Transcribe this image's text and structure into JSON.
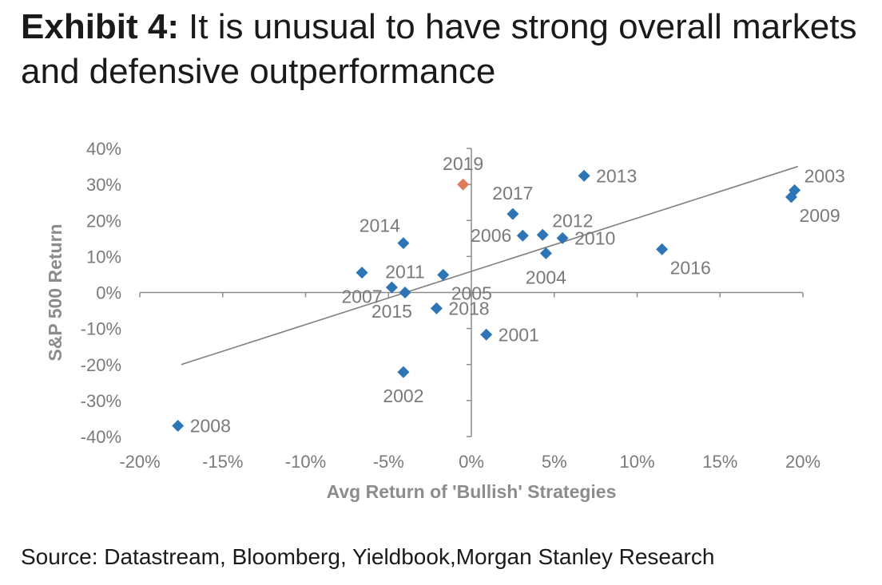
{
  "header": {
    "lead": "Exhibit 4:",
    "title": "It is unusual to have strong overall markets and defensive outperformance"
  },
  "footer": {
    "source": "Source: Datastream, Bloomberg, Yieldbook,Morgan Stanley Research"
  },
  "chart_data": {
    "type": "scatter",
    "title": "",
    "xlabel": "Avg Return of 'Bullish' Strategies",
    "ylabel": "S&P 500 Return",
    "xlim": [
      -0.2,
      0.2
    ],
    "ylim": [
      -0.4,
      0.4
    ],
    "x_ticks": [
      {
        "value": -0.2,
        "label": "-20%"
      },
      {
        "value": -0.15,
        "label": "-15%"
      },
      {
        "value": -0.1,
        "label": "-10%"
      },
      {
        "value": -0.05,
        "label": "-5%"
      },
      {
        "value": 0.0,
        "label": "0%"
      },
      {
        "value": 0.05,
        "label": "5%"
      },
      {
        "value": 0.1,
        "label": "10%"
      },
      {
        "value": 0.15,
        "label": "15%"
      },
      {
        "value": 0.2,
        "label": "20%"
      }
    ],
    "y_ticks": [
      {
        "value": 0.4,
        "label": "40%"
      },
      {
        "value": 0.3,
        "label": "30%"
      },
      {
        "value": 0.2,
        "label": "20%"
      },
      {
        "value": 0.1,
        "label": "10%"
      },
      {
        "value": 0.0,
        "label": "0%"
      },
      {
        "value": -0.1,
        "label": "-10%"
      },
      {
        "value": -0.2,
        "label": "-20%"
      },
      {
        "value": -0.3,
        "label": "-30%"
      },
      {
        "value": -0.4,
        "label": "-40%"
      }
    ],
    "colors": {
      "points": "#2e75b6",
      "highlight": "#e07b5c",
      "trendline": "#7f7f7f",
      "axis": "#8c8c8c"
    },
    "points": [
      {
        "year": "2001",
        "x": 0.009,
        "y": -0.117,
        "label_pos": "right"
      },
      {
        "year": "2002",
        "x": -0.041,
        "y": -0.221,
        "label_pos": "below"
      },
      {
        "year": "2003",
        "x": 0.195,
        "y": 0.284,
        "label_pos": "above-right"
      },
      {
        "year": "2004",
        "x": 0.045,
        "y": 0.109,
        "label_pos": "below"
      },
      {
        "year": "2005",
        "x": -0.017,
        "y": 0.049,
        "label_pos": "below-right"
      },
      {
        "year": "2006",
        "x": 0.031,
        "y": 0.158,
        "label_pos": "left"
      },
      {
        "year": "2007",
        "x": -0.066,
        "y": 0.055,
        "label_pos": "below"
      },
      {
        "year": "2008",
        "x": -0.177,
        "y": -0.37,
        "label_pos": "right"
      },
      {
        "year": "2009",
        "x": 0.193,
        "y": 0.265,
        "label_pos": "below-right"
      },
      {
        "year": "2010",
        "x": 0.055,
        "y": 0.151,
        "label_pos": "right"
      },
      {
        "year": "2011",
        "x": -0.04,
        "y": 0.0,
        "label_pos": "above"
      },
      {
        "year": "2012",
        "x": 0.043,
        "y": 0.16,
        "label_pos": "above-right"
      },
      {
        "year": "2013",
        "x": 0.068,
        "y": 0.324,
        "label_pos": "right"
      },
      {
        "year": "2014",
        "x": -0.041,
        "y": 0.137,
        "label_pos": "above-left"
      },
      {
        "year": "2015",
        "x": -0.048,
        "y": 0.014,
        "label_pos": "below"
      },
      {
        "year": "2016",
        "x": 0.115,
        "y": 0.12,
        "label_pos": "below-right"
      },
      {
        "year": "2017",
        "x": 0.025,
        "y": 0.218,
        "label_pos": "above"
      },
      {
        "year": "2018",
        "x": -0.021,
        "y": -0.044,
        "label_pos": "right"
      },
      {
        "year": "2019",
        "x": -0.005,
        "y": 0.3,
        "label_pos": "above",
        "highlight": true
      }
    ],
    "trendline": {
      "x1": -0.175,
      "y1": -0.2,
      "x2": 0.197,
      "y2": 0.35
    }
  }
}
